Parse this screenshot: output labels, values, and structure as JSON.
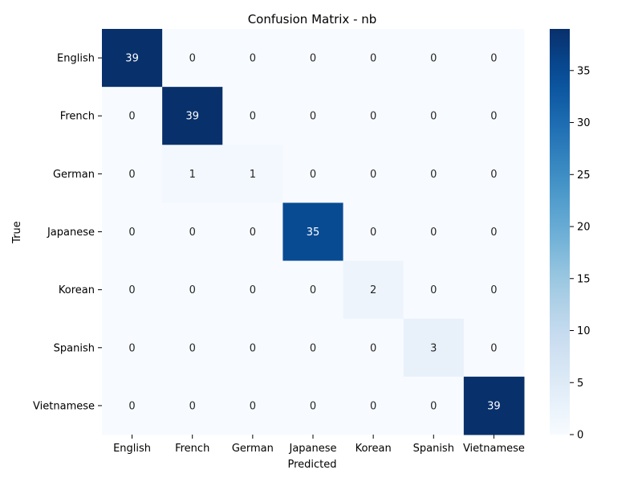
{
  "chart_data": {
    "type": "heatmap",
    "title": "Confusion Matrix - nb",
    "xlabel": "Predicted",
    "ylabel": "True",
    "x_categories": [
      "English",
      "French",
      "German",
      "Japanese",
      "Korean",
      "Spanish",
      "Vietnamese"
    ],
    "y_categories": [
      "English",
      "French",
      "German",
      "Japanese",
      "Korean",
      "Spanish",
      "Vietnamese"
    ],
    "values": [
      [
        39,
        0,
        0,
        0,
        0,
        0,
        0
      ],
      [
        0,
        39,
        0,
        0,
        0,
        0,
        0
      ],
      [
        0,
        1,
        1,
        0,
        0,
        0,
        0
      ],
      [
        0,
        0,
        0,
        35,
        0,
        0,
        0
      ],
      [
        0,
        0,
        0,
        0,
        2,
        0,
        0
      ],
      [
        0,
        0,
        0,
        0,
        0,
        3,
        0
      ],
      [
        0,
        0,
        0,
        0,
        0,
        0,
        39
      ]
    ],
    "colorbar": {
      "min": 0,
      "max": 39,
      "ticks": [
        0,
        5,
        10,
        15,
        20,
        25,
        30,
        35
      ],
      "colormap": "Blues"
    }
  }
}
